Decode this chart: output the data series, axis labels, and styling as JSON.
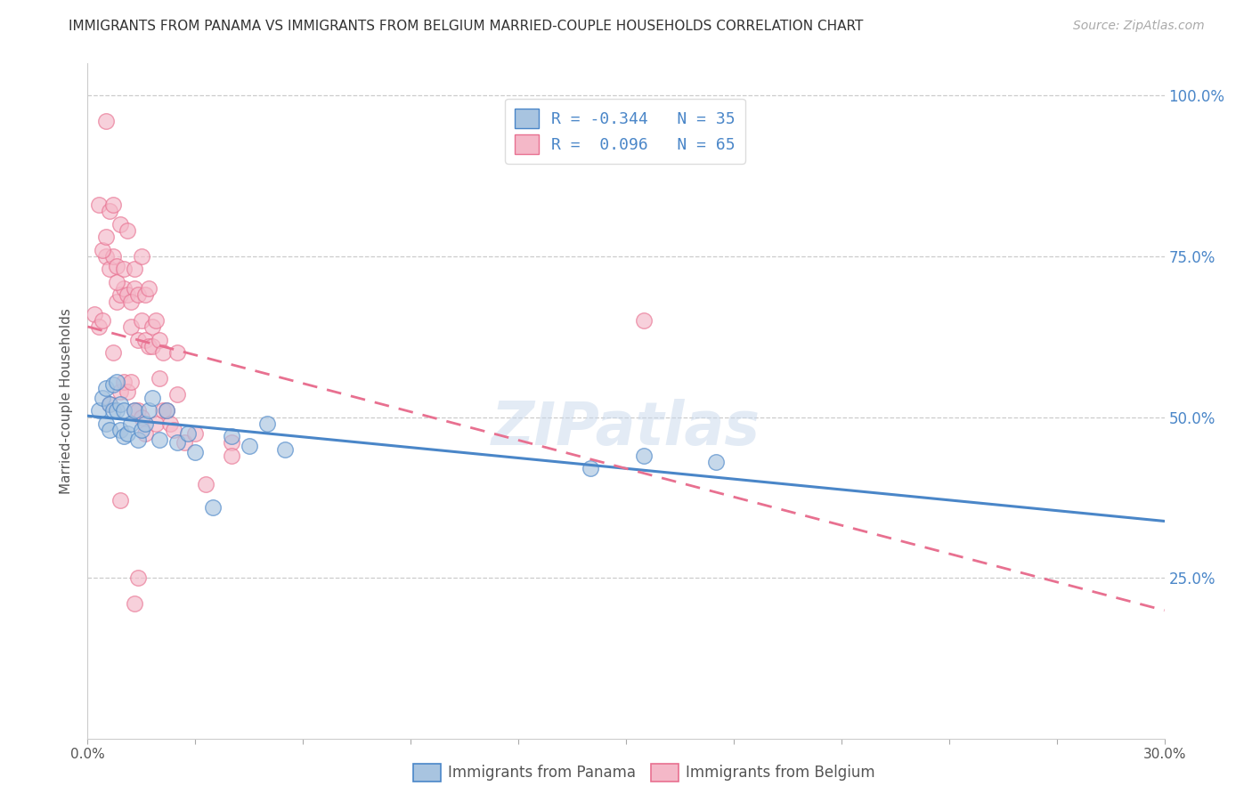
{
  "title": "IMMIGRANTS FROM PANAMA VS IMMIGRANTS FROM BELGIUM MARRIED-COUPLE HOUSEHOLDS CORRELATION CHART",
  "source": "Source: ZipAtlas.com",
  "ylabel": "Married-couple Households",
  "xlim": [
    0.0,
    0.3
  ],
  "ylim": [
    0.0,
    1.05
  ],
  "y_ticks": [
    0.25,
    0.5,
    0.75,
    1.0
  ],
  "y_tick_labels": [
    "25.0%",
    "50.0%",
    "75.0%",
    "100.0%"
  ],
  "legend_label1": "Immigrants from Panama",
  "legend_label2": "Immigrants from Belgium",
  "color_panama": "#a8c4e0",
  "color_belgium": "#f4b8c8",
  "color_line_panama": "#4a86c8",
  "color_line_belgium": "#e87090",
  "legend_r1_text": "R = -0.344   N = 35",
  "legend_r2_text": "R =  0.096   N = 65",
  "panama_x": [
    0.003,
    0.004,
    0.005,
    0.005,
    0.006,
    0.006,
    0.007,
    0.007,
    0.008,
    0.008,
    0.009,
    0.009,
    0.01,
    0.01,
    0.011,
    0.012,
    0.013,
    0.014,
    0.015,
    0.016,
    0.017,
    0.018,
    0.02,
    0.022,
    0.025,
    0.028,
    0.03,
    0.035,
    0.04,
    0.045,
    0.05,
    0.055,
    0.14,
    0.155,
    0.175
  ],
  "panama_y": [
    0.51,
    0.53,
    0.545,
    0.49,
    0.48,
    0.52,
    0.51,
    0.55,
    0.51,
    0.555,
    0.52,
    0.48,
    0.51,
    0.47,
    0.475,
    0.49,
    0.51,
    0.465,
    0.48,
    0.49,
    0.51,
    0.53,
    0.465,
    0.51,
    0.46,
    0.475,
    0.445,
    0.36,
    0.47,
    0.455,
    0.49,
    0.45,
    0.42,
    0.44,
    0.43
  ],
  "belgium_x": [
    0.002,
    0.003,
    0.004,
    0.005,
    0.005,
    0.006,
    0.006,
    0.007,
    0.007,
    0.008,
    0.008,
    0.009,
    0.009,
    0.01,
    0.01,
    0.011,
    0.011,
    0.012,
    0.012,
    0.013,
    0.013,
    0.014,
    0.014,
    0.015,
    0.015,
    0.016,
    0.016,
    0.017,
    0.018,
    0.019,
    0.02,
    0.021,
    0.022,
    0.023,
    0.024,
    0.025,
    0.027,
    0.03,
    0.033,
    0.04,
    0.003,
    0.004,
    0.005,
    0.006,
    0.007,
    0.008,
    0.009,
    0.01,
    0.011,
    0.012,
    0.013,
    0.014,
    0.015,
    0.016,
    0.017,
    0.018,
    0.019,
    0.02,
    0.021,
    0.025,
    0.155,
    0.04,
    0.014,
    0.009,
    0.013
  ],
  "belgium_y": [
    0.66,
    0.64,
    0.65,
    0.96,
    0.75,
    0.73,
    0.52,
    0.75,
    0.6,
    0.735,
    0.68,
    0.69,
    0.54,
    0.7,
    0.555,
    0.69,
    0.54,
    0.64,
    0.555,
    0.7,
    0.51,
    0.62,
    0.51,
    0.65,
    0.5,
    0.62,
    0.475,
    0.61,
    0.61,
    0.49,
    0.56,
    0.51,
    0.51,
    0.49,
    0.48,
    0.535,
    0.46,
    0.475,
    0.395,
    0.46,
    0.83,
    0.76,
    0.78,
    0.82,
    0.83,
    0.71,
    0.8,
    0.73,
    0.79,
    0.68,
    0.73,
    0.69,
    0.75,
    0.69,
    0.7,
    0.64,
    0.65,
    0.62,
    0.6,
    0.6,
    0.65,
    0.44,
    0.25,
    0.37,
    0.21
  ],
  "background_color": "#ffffff",
  "grid_color": "#cccccc",
  "watermark": "ZIPatlas"
}
